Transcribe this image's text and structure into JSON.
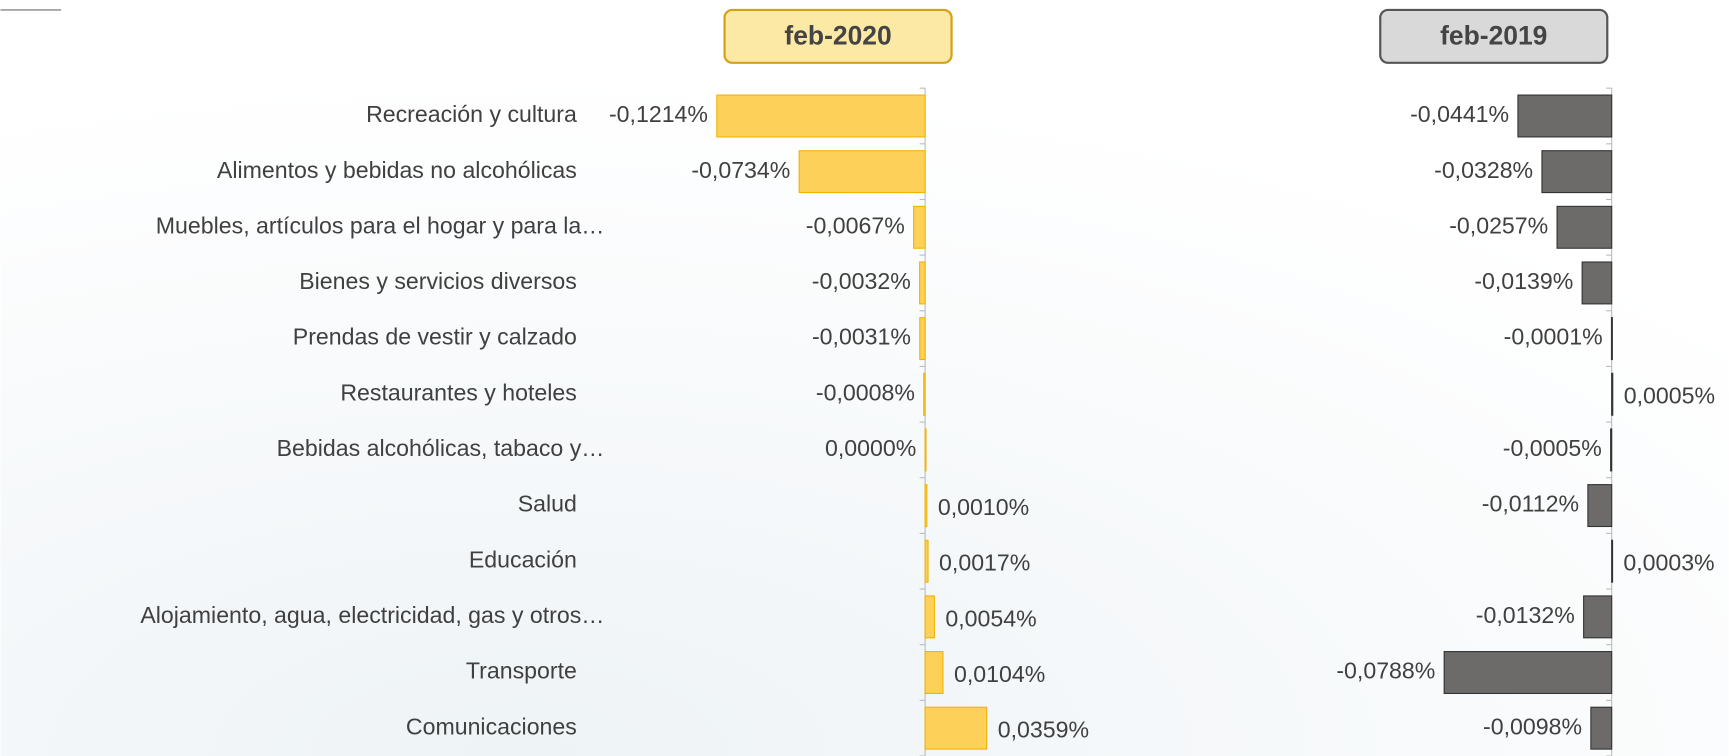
{
  "chart_data": [
    {
      "type": "bar",
      "orientation": "horizontal",
      "title": "feb-2020",
      "color": "#fdd05a",
      "categories": [
        "Recreación y cultura",
        "Alimentos y bebidas no alcohólicas",
        "Muebles, artículos para el hogar y para la…",
        "Bienes y servicios diversos",
        "Prendas de vestir y calzado",
        "Restaurantes y hoteles",
        "Bebidas alcohólicas, tabaco y…",
        "Salud",
        "Educación",
        "Alojamiento, agua, electricidad, gas y otros…",
        "Transporte",
        "Comunicaciones"
      ],
      "values": [
        -0.1214,
        -0.0734,
        -0.0067,
        -0.0032,
        -0.0031,
        -0.0008,
        0.0,
        0.001,
        0.0017,
        0.0054,
        0.0104,
        0.0359
      ],
      "value_labels": [
        "-0,1214%",
        "-0,0734%",
        "-0,0067%",
        "-0,0032%",
        "-0,0031%",
        "-0,0008%",
        "0,0000%",
        "0,0010%",
        "0,0017%",
        "0,0054%",
        "0,0104%",
        "0,0359%"
      ]
    },
    {
      "type": "bar",
      "orientation": "horizontal",
      "title": "feb-2019",
      "color": "#6d6a6a",
      "values": [
        -0.0441,
        -0.0328,
        -0.0257,
        -0.0139,
        -0.0001,
        0.0005,
        -0.0005,
        -0.0112,
        0.0003,
        -0.0132,
        -0.0788,
        -0.0098
      ],
      "value_labels": [
        "-0,0441%",
        "-0,0328%",
        "-0,0257%",
        "-0,0139%",
        "-0,0001%",
        "0,0005%",
        "-0,0005%",
        "-0,0112%",
        "0,0003%",
        "-0,0132%",
        "-0,0788%",
        "-0,0098%"
      ]
    }
  ]
}
